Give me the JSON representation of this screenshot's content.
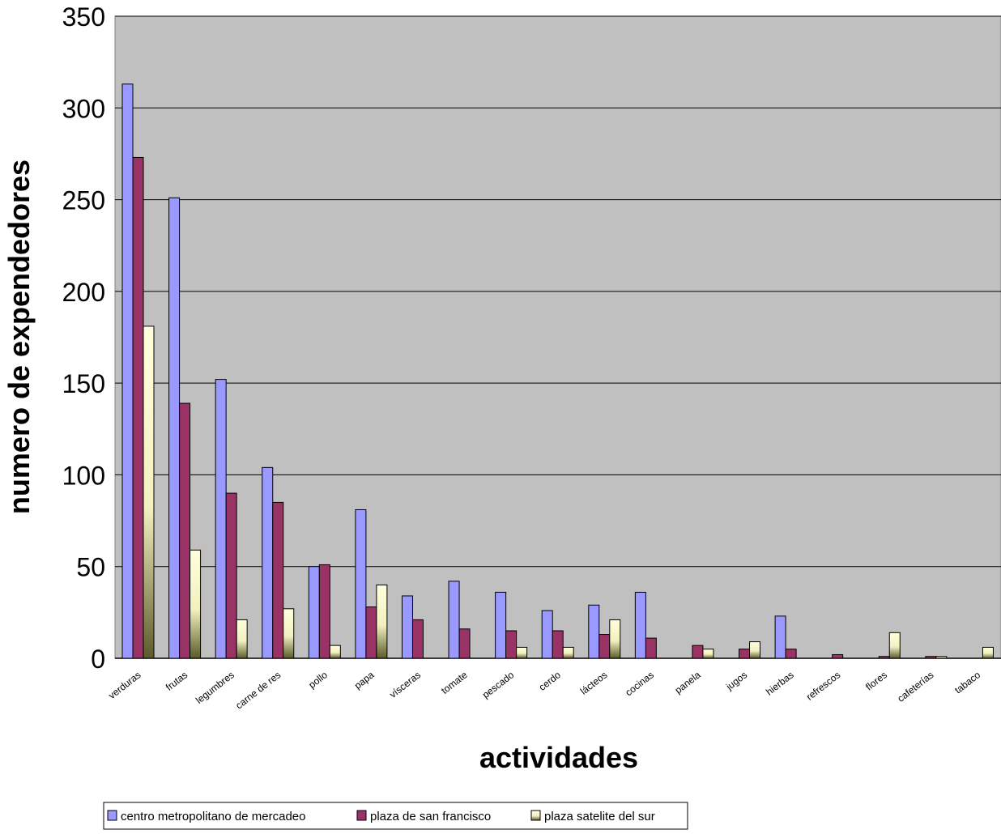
{
  "chart_data": {
    "type": "bar",
    "title": "",
    "xlabel": "actividades",
    "ylabel": "numero de expendedores",
    "ylim": [
      0,
      350
    ],
    "yticks": [
      0,
      50,
      100,
      150,
      200,
      250,
      300,
      350
    ],
    "grid": true,
    "legend_position": "bottom-left",
    "plot_background": "#c0c0c0",
    "categories": [
      "verduras",
      "frutas",
      "legumbres",
      "carne de res",
      "pollo",
      "papa",
      "vísceras",
      "tomate",
      "pescado",
      "cerdo",
      "lácteos",
      "cocinas",
      "panela",
      "jugos",
      "hierbas",
      "refrescos",
      "flores",
      "cafeterías",
      "tabaco"
    ],
    "series": [
      {
        "name": "centro metropolitano de mercadeo",
        "color": "#9999ff",
        "values": [
          313,
          251,
          152,
          104,
          50,
          81,
          34,
          42,
          36,
          26,
          29,
          36,
          0,
          0,
          23,
          0,
          0,
          0,
          0
        ]
      },
      {
        "name": "plaza de san francisco",
        "color": "#993366",
        "values": [
          273,
          139,
          90,
          85,
          51,
          28,
          21,
          16,
          15,
          15,
          13,
          11,
          7,
          5,
          5,
          2,
          1,
          1,
          0
        ]
      },
      {
        "name": "plaza satelite del sur",
        "color": "#ffffcc",
        "values": [
          181,
          59,
          21,
          27,
          7,
          40,
          0,
          0,
          6,
          6,
          21,
          0,
          5,
          9,
          0,
          0,
          14,
          1,
          6
        ]
      }
    ]
  }
}
